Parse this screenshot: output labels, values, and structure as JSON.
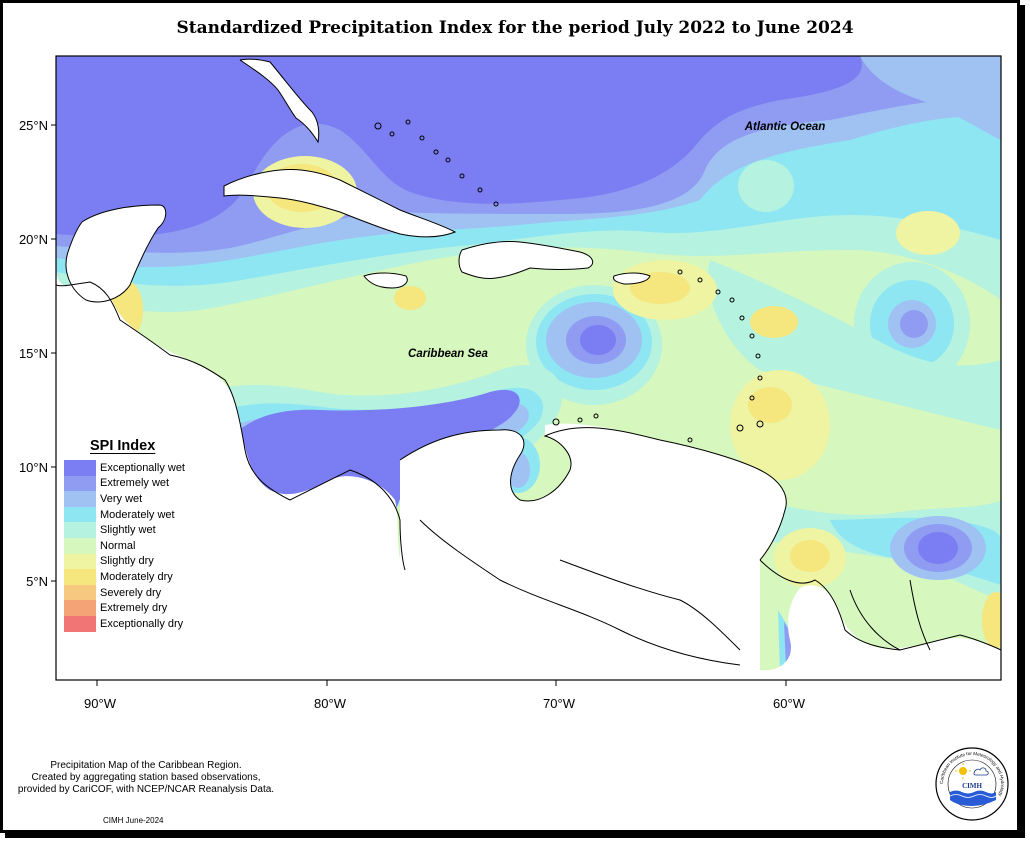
{
  "title": "Standardized Precipitation Index for the period July 2022 to June 2024",
  "map": {
    "lat_ticks": [
      "25°N",
      "20°N",
      "15°N",
      "10°N",
      "5°N"
    ],
    "lon_ticks": [
      "90°W",
      "80°W",
      "70°W",
      "60°W"
    ],
    "labels": {
      "atlantic": "Atlantic Ocean",
      "caribbean": "Caribbean Sea"
    }
  },
  "legend": {
    "title": "SPI Index",
    "items": [
      {
        "label": "Exceptionally wet",
        "color": "#7b7df2"
      },
      {
        "label": "Extremely wet",
        "color": "#8f9cf1"
      },
      {
        "label": "Very wet",
        "color": "#9fc2f3"
      },
      {
        "label": "Moderately wet",
        "color": "#8ee6f3"
      },
      {
        "label": "Slightly wet",
        "color": "#b5f2e0"
      },
      {
        "label": "Normal",
        "color": "#d6f7bd"
      },
      {
        "label": "Slightly dry",
        "color": "#eef4a2"
      },
      {
        "label": "Moderately dry",
        "color": "#f5e67e"
      },
      {
        "label": "Severely dry",
        "color": "#f7c880"
      },
      {
        "label": "Extremely dry",
        "color": "#f4a377"
      },
      {
        "label": "Exceptionally dry",
        "color": "#f27575"
      }
    ]
  },
  "footer": {
    "line1": "Precipitation Map of the Caribbean Region.",
    "line2": "Created by aggregating station based observations,",
    "line3": "provided by CariCOF, with NCEP/NCAR Reanalysis Data.",
    "date": "CIMH June-2024"
  },
  "logo": {
    "text": "CIMH",
    "ring_text": "Caribbean Institute for Meteorology and Hydrology"
  }
}
